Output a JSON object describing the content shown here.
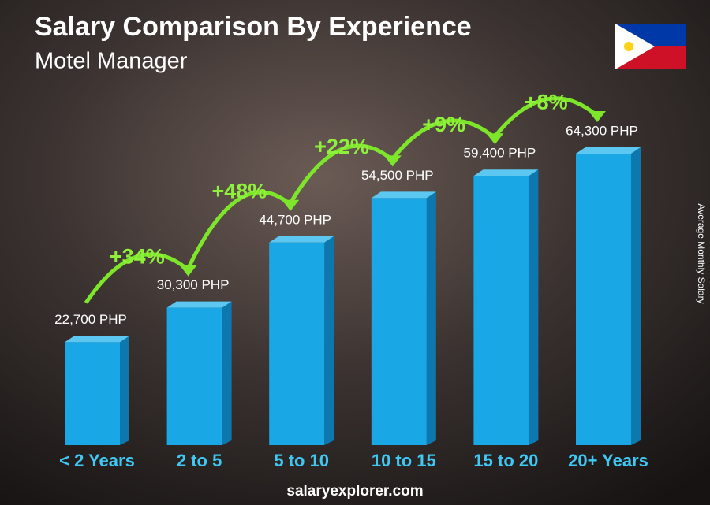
{
  "chart_data": {
    "type": "bar3d",
    "title": "Salary Comparison By Experience",
    "subtitle": "Motel Manager",
    "y_label": "Average Monthly Salary",
    "source": "salaryexplorer.com",
    "categories": [
      "< 2 Years",
      "2 to 5",
      "5 to 10",
      "10 to 15",
      "15 to 20",
      "20+ Years"
    ],
    "values": [
      22700,
      30300,
      44700,
      54500,
      59400,
      64300
    ],
    "value_labels": [
      "22,700 PHP",
      "30,300 PHP",
      "44,700 PHP",
      "54,500 PHP",
      "59,400 PHP",
      "64,300 PHP"
    ],
    "increases": [
      "+34%",
      "+48%",
      "+22%",
      "+9%",
      "+8%"
    ],
    "color": "#1aa7e6"
  }
}
